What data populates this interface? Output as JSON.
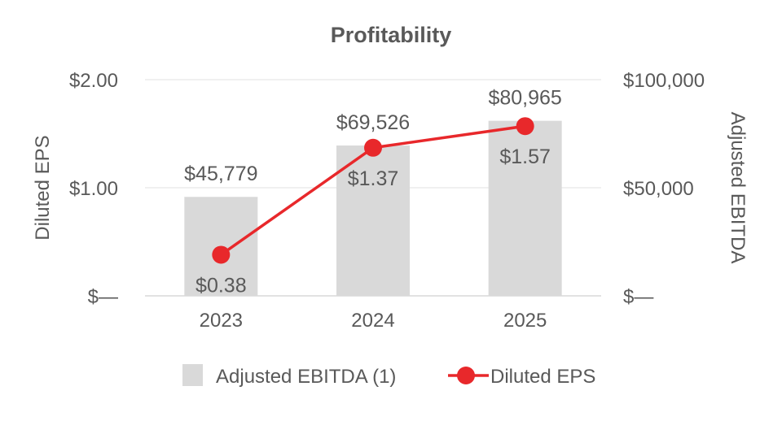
{
  "chart_data": {
    "type": "bar-line-combo",
    "title": "Profitability",
    "categories": [
      "2023",
      "2024",
      "2025"
    ],
    "y_left": {
      "label": "Diluted EPS",
      "range": [
        0,
        2
      ],
      "ticks": [
        0,
        1,
        2
      ],
      "tick_labels": [
        "$—",
        "$1.00",
        "$2.00"
      ]
    },
    "y_right": {
      "label": "Adjusted EBITDA",
      "range": [
        0,
        100000
      ],
      "ticks": [
        0,
        50000,
        100000
      ],
      "tick_labels": [
        "$—",
        "$50,000",
        "$100,000"
      ]
    },
    "grid": true,
    "legend_position": "bottom",
    "series": [
      {
        "name": "Adjusted EBITDA (1)",
        "type": "bar",
        "axis": "right",
        "color": "#d9d9d9",
        "values": [
          45779,
          69526,
          80965
        ],
        "labels": [
          "$45,779",
          "$69,526",
          "$80,965"
        ]
      },
      {
        "name": "Diluted EPS",
        "type": "line",
        "axis": "left",
        "color": "#e8282b",
        "values": [
          0.38,
          1.37,
          1.57
        ],
        "labels": [
          "$0.38",
          "$1.37",
          "$1.57"
        ]
      }
    ]
  }
}
